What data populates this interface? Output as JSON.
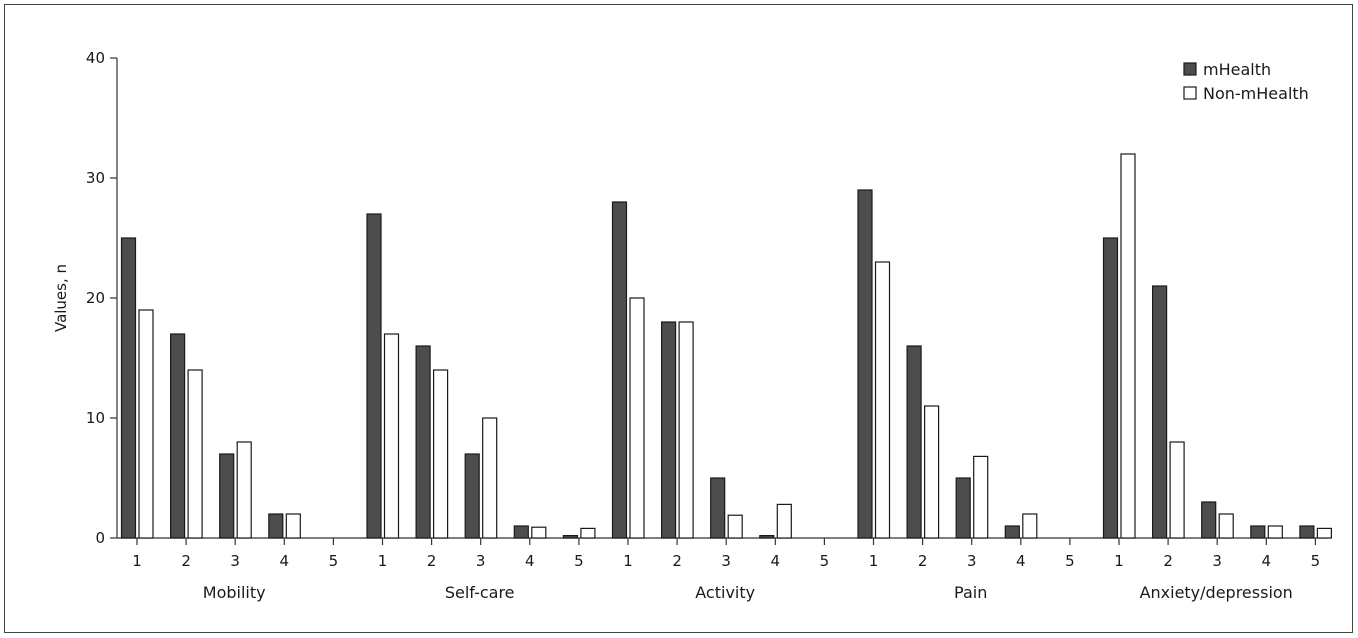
{
  "chart_data": {
    "type": "bar",
    "title": "",
    "ylabel": "Values, n",
    "xlabel": "",
    "ylim": [
      0,
      40
    ],
    "yticks": [
      0,
      10,
      20,
      30,
      40
    ],
    "groups": [
      "Mobility",
      "Self-care",
      "Activity",
      "Pain",
      "Anxiety/depression"
    ],
    "levels": [
      "1",
      "2",
      "3",
      "4",
      "5"
    ],
    "legend_position": "top-right",
    "grid": false,
    "series": [
      {
        "name": "mHealth",
        "color": "#4d4d4d",
        "values": [
          [
            25,
            17,
            7,
            2,
            0
          ],
          [
            27,
            16,
            7,
            1,
            0.2
          ],
          [
            28,
            18,
            5,
            0.2,
            0
          ],
          [
            29,
            16,
            5,
            1,
            0
          ],
          [
            25,
            21,
            3,
            1,
            1
          ]
        ]
      },
      {
        "name": "Non-mHealth",
        "color": "#ffffff",
        "values": [
          [
            19,
            14,
            8,
            2,
            0
          ],
          [
            17,
            14,
            10,
            0.9,
            0.8
          ],
          [
            20,
            18,
            1.9,
            2.8,
            0
          ],
          [
            23,
            11,
            6.8,
            2,
            0
          ],
          [
            32,
            8,
            2,
            1,
            0.8
          ]
        ]
      }
    ]
  }
}
